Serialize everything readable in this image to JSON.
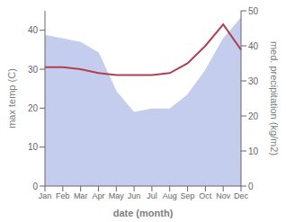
{
  "chart_data": {
    "type": "line",
    "xlabel": "date (month)",
    "ylabel": "max temp (C)",
    "y2label": "med. precipitation (kg/m2)",
    "categories": [
      "Jan",
      "Feb",
      "Mar",
      "Apr",
      "May",
      "Jun",
      "Jul",
      "Aug",
      "Sep",
      "Oct",
      "Nov",
      "Dec"
    ],
    "series": [
      {
        "type": "area",
        "axis": "y2",
        "color": "#c5cdef",
        "values": [
          43,
          42,
          41,
          38,
          27,
          21,
          22,
          22,
          26,
          33,
          42,
          48
        ]
      },
      {
        "type": "line",
        "color": "#b04050",
        "values": [
          30.5,
          30.5,
          30.0,
          29.0,
          28.5,
          28.5,
          28.5,
          29.0,
          31.5,
          36.0,
          41.5,
          35.0
        ]
      }
    ],
    "ylim": [
      0,
      45
    ],
    "yticks": [
      0,
      10,
      20,
      30,
      40
    ],
    "y2lim": [
      0,
      50
    ],
    "y2ticks": [
      0,
      10,
      20,
      30,
      40,
      50
    ],
    "grid": false
  }
}
